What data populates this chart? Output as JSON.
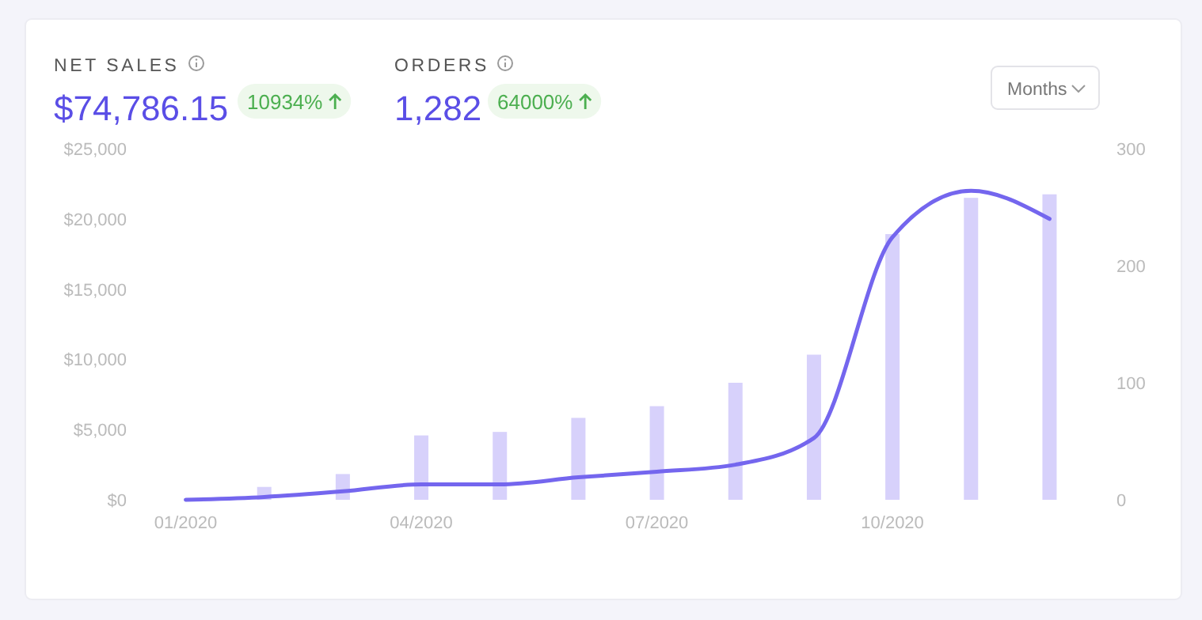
{
  "chart_data": {
    "type": "bar",
    "categories": [
      "01/2020",
      null,
      null,
      "04/2020",
      null,
      null,
      "07/2020",
      null,
      null,
      "10/2020",
      null,
      null
    ],
    "series": [
      {
        "axis": "y2",
        "color": "#d7d1fb",
        "values": [
          0,
          11,
          22,
          55,
          58,
          70,
          80,
          100,
          124,
          227,
          258,
          261
        ]
      },
      {
        "type": "line",
        "axis": "y",
        "color": "#7466ee",
        "values": [
          0,
          200,
          600,
          1100,
          1100,
          1600,
          2000,
          2500,
          4400,
          18700,
          22000,
          20000
        ]
      }
    ],
    "ylim": [
      0,
      25000
    ],
    "yticks": [
      {
        "value": 0,
        "label": "$0"
      },
      {
        "value": 5000,
        "label": "$5,000"
      },
      {
        "value": 10000,
        "label": "$10,000"
      },
      {
        "value": 15000,
        "label": "$15,000"
      },
      {
        "value": 20000,
        "label": "$20,000"
      },
      {
        "value": 25000,
        "label": "$25,000"
      }
    ],
    "y2lim": [
      0,
      300
    ],
    "y2ticks": [
      0,
      100,
      200,
      300
    ],
    "grid": false,
    "line_style": "solid",
    "marker": "none",
    "annotations": [
      "NET SALES",
      "$74,786.15",
      "10934%",
      "ORDERS",
      "1,282",
      "64000%",
      "Months"
    ]
  }
}
